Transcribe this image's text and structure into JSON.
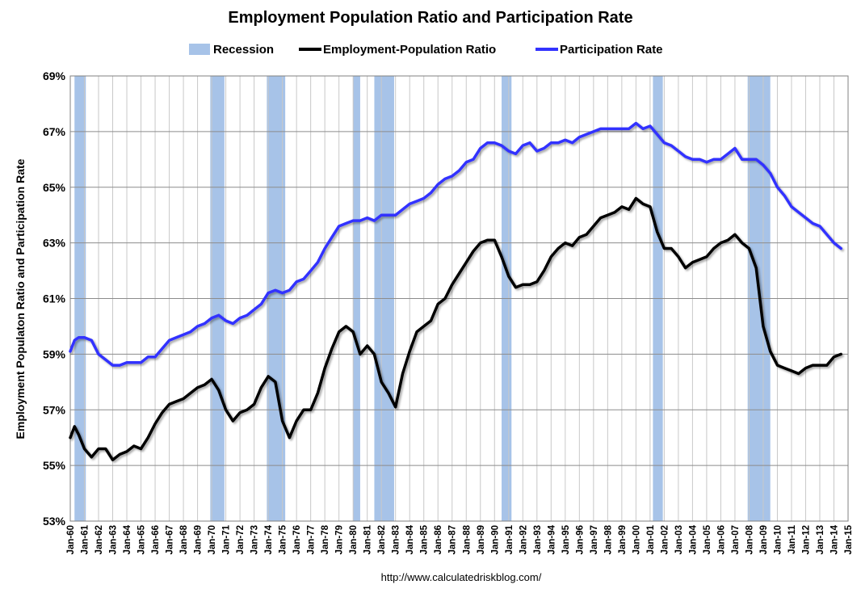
{
  "chart_data": {
    "type": "line",
    "title": "Employment Population Ratio and Participation Rate",
    "ylabel": "Employment Populaton Ratio and Participation Rate",
    "xlabel": "",
    "source": "http://www.calculatedriskblog.com/",
    "ylim": [
      53,
      69
    ],
    "xlim": [
      1960.0,
      2015.0
    ],
    "y_ticks": [
      "53%",
      "55%",
      "57%",
      "59%",
      "61%",
      "63%",
      "65%",
      "67%",
      "69%"
    ],
    "x_ticks": [
      "Jan-60",
      "Jan-61",
      "Jan-62",
      "Jan-63",
      "Jan-64",
      "Jan-65",
      "Jan-66",
      "Jan-67",
      "Jan-68",
      "Jan-69",
      "Jan-70",
      "Jan-71",
      "Jan-72",
      "Jan-73",
      "Jan-74",
      "Jan-75",
      "Jan-76",
      "Jan-77",
      "Jan-78",
      "Jan-79",
      "Jan-80",
      "Jan-81",
      "Jan-82",
      "Jan-83",
      "Jan-84",
      "Jan-85",
      "Jan-86",
      "Jan-87",
      "Jan-88",
      "Jan-89",
      "Jan-90",
      "Jan-91",
      "Jan-92",
      "Jan-93",
      "Jan-94",
      "Jan-95",
      "Jan-96",
      "Jan-97",
      "Jan-98",
      "Jan-99",
      "Jan-00",
      "Jan-01",
      "Jan-02",
      "Jan-03",
      "Jan-04",
      "Jan-05",
      "Jan-06",
      "Jan-07",
      "Jan-08",
      "Jan-09",
      "Jan-10",
      "Jan-11",
      "Jan-12",
      "Jan-13",
      "Jan-14",
      "Jan-15"
    ],
    "legend": [
      {
        "name": "Recession",
        "kind": "area",
        "color": "#a7c3e8"
      },
      {
        "name": "Employment-Population Ratio",
        "kind": "line",
        "color": "#000000"
      },
      {
        "name": "Participation Rate",
        "kind": "line",
        "color": "#3333ff"
      }
    ],
    "recessions": [
      [
        1960.3,
        1961.1
      ],
      [
        1969.9,
        1970.9
      ],
      [
        1973.9,
        1975.2
      ],
      [
        1980.0,
        1980.5
      ],
      [
        1981.5,
        1982.9
      ],
      [
        1990.5,
        1991.2
      ],
      [
        2001.2,
        2001.9
      ],
      [
        2007.9,
        2009.5
      ]
    ],
    "series": [
      {
        "name": "Participation Rate",
        "color": "#3333ff",
        "x": [
          1960.0,
          1960.3,
          1960.6,
          1961.0,
          1961.5,
          1962.0,
          1962.5,
          1963.0,
          1963.5,
          1964.0,
          1964.5,
          1965.0,
          1965.5,
          1966.0,
          1966.5,
          1967.0,
          1967.5,
          1968.0,
          1968.5,
          1969.0,
          1969.5,
          1970.0,
          1970.5,
          1971.0,
          1971.5,
          1972.0,
          1972.5,
          1973.0,
          1973.5,
          1974.0,
          1974.5,
          1975.0,
          1975.5,
          1976.0,
          1976.5,
          1977.0,
          1977.5,
          1978.0,
          1978.5,
          1979.0,
          1979.5,
          1980.0,
          1980.5,
          1981.0,
          1981.5,
          1982.0,
          1982.5,
          1983.0,
          1983.5,
          1984.0,
          1984.5,
          1985.0,
          1985.5,
          1986.0,
          1986.5,
          1987.0,
          1987.5,
          1988.0,
          1988.5,
          1989.0,
          1989.5,
          1990.0,
          1990.5,
          1991.0,
          1991.5,
          1992.0,
          1992.5,
          1993.0,
          1993.5,
          1994.0,
          1994.5,
          1995.0,
          1995.5,
          1996.0,
          1996.5,
          1997.0,
          1997.5,
          1998.0,
          1998.5,
          1999.0,
          1999.5,
          2000.0,
          2000.5,
          2001.0,
          2001.5,
          2002.0,
          2002.5,
          2003.0,
          2003.5,
          2004.0,
          2004.5,
          2005.0,
          2005.5,
          2006.0,
          2006.5,
          2007.0,
          2007.5,
          2008.0,
          2008.5,
          2009.0,
          2009.5,
          2010.0,
          2010.5,
          2011.0,
          2011.5,
          2012.0,
          2012.5,
          2013.0,
          2013.5,
          2014.0,
          2014.5
        ],
        "values": [
          59.1,
          59.5,
          59.6,
          59.6,
          59.5,
          59.0,
          58.8,
          58.6,
          58.6,
          58.7,
          58.7,
          58.7,
          58.9,
          58.9,
          59.2,
          59.5,
          59.6,
          59.7,
          59.8,
          60.0,
          60.1,
          60.3,
          60.4,
          60.2,
          60.1,
          60.3,
          60.4,
          60.6,
          60.8,
          61.2,
          61.3,
          61.2,
          61.3,
          61.6,
          61.7,
          62.0,
          62.3,
          62.8,
          63.2,
          63.6,
          63.7,
          63.8,
          63.8,
          63.9,
          63.8,
          64.0,
          64.0,
          64.0,
          64.2,
          64.4,
          64.5,
          64.6,
          64.8,
          65.1,
          65.3,
          65.4,
          65.6,
          65.9,
          66.0,
          66.4,
          66.6,
          66.6,
          66.5,
          66.3,
          66.2,
          66.5,
          66.6,
          66.3,
          66.4,
          66.6,
          66.6,
          66.7,
          66.6,
          66.8,
          66.9,
          67.0,
          67.1,
          67.1,
          67.1,
          67.1,
          67.1,
          67.3,
          67.1,
          67.2,
          66.9,
          66.6,
          66.5,
          66.3,
          66.1,
          66.0,
          66.0,
          65.9,
          66.0,
          66.0,
          66.2,
          66.4,
          66.0,
          66.0,
          66.0,
          65.8,
          65.5,
          65.0,
          64.7,
          64.3,
          64.1,
          63.9,
          63.7,
          63.6,
          63.3,
          63.0,
          62.8
        ]
      },
      {
        "name": "Employment-Population Ratio",
        "color": "#000000",
        "x": [
          1960.0,
          1960.3,
          1960.6,
          1961.0,
          1961.5,
          1962.0,
          1962.5,
          1963.0,
          1963.5,
          1964.0,
          1964.5,
          1965.0,
          1965.5,
          1966.0,
          1966.5,
          1967.0,
          1967.5,
          1968.0,
          1968.5,
          1969.0,
          1969.5,
          1970.0,
          1970.5,
          1971.0,
          1971.5,
          1972.0,
          1972.5,
          1973.0,
          1973.5,
          1974.0,
          1974.5,
          1975.0,
          1975.5,
          1976.0,
          1976.5,
          1977.0,
          1977.5,
          1978.0,
          1978.5,
          1979.0,
          1979.5,
          1980.0,
          1980.5,
          1981.0,
          1981.5,
          1982.0,
          1982.5,
          1983.0,
          1983.5,
          1984.0,
          1984.5,
          1985.0,
          1985.5,
          1986.0,
          1986.5,
          1987.0,
          1987.5,
          1988.0,
          1988.5,
          1989.0,
          1989.5,
          1990.0,
          1990.5,
          1991.0,
          1991.5,
          1992.0,
          1992.5,
          1993.0,
          1993.5,
          1994.0,
          1994.5,
          1995.0,
          1995.5,
          1996.0,
          1996.5,
          1997.0,
          1997.5,
          1998.0,
          1998.5,
          1999.0,
          1999.5,
          2000.0,
          2000.5,
          2001.0,
          2001.5,
          2002.0,
          2002.5,
          2003.0,
          2003.5,
          2004.0,
          2004.5,
          2005.0,
          2005.5,
          2006.0,
          2006.5,
          2007.0,
          2007.5,
          2008.0,
          2008.5,
          2009.0,
          2009.5,
          2010.0,
          2010.5,
          2011.0,
          2011.5,
          2012.0,
          2012.5,
          2013.0,
          2013.5,
          2014.0,
          2014.5
        ],
        "values": [
          56.0,
          56.4,
          56.1,
          55.6,
          55.3,
          55.6,
          55.6,
          55.2,
          55.4,
          55.5,
          55.7,
          55.6,
          56.0,
          56.5,
          56.9,
          57.2,
          57.3,
          57.4,
          57.6,
          57.8,
          57.9,
          58.1,
          57.7,
          57.0,
          56.6,
          56.9,
          57.0,
          57.2,
          57.8,
          58.2,
          58.0,
          56.6,
          56.0,
          56.6,
          57.0,
          57.0,
          57.6,
          58.5,
          59.2,
          59.8,
          60.0,
          59.8,
          59.0,
          59.3,
          59.0,
          58.0,
          57.6,
          57.1,
          58.3,
          59.1,
          59.8,
          60.0,
          60.2,
          60.8,
          61.0,
          61.5,
          61.9,
          62.3,
          62.7,
          63.0,
          63.1,
          63.1,
          62.5,
          61.8,
          61.4,
          61.5,
          61.5,
          61.6,
          62.0,
          62.5,
          62.8,
          63.0,
          62.9,
          63.2,
          63.3,
          63.6,
          63.9,
          64.0,
          64.1,
          64.3,
          64.2,
          64.6,
          64.4,
          64.3,
          63.4,
          62.8,
          62.8,
          62.5,
          62.1,
          62.3,
          62.4,
          62.5,
          62.8,
          63.0,
          63.1,
          63.3,
          63.0,
          62.8,
          62.1,
          60.0,
          59.1,
          58.6,
          58.5,
          58.4,
          58.3,
          58.5,
          58.6,
          58.6,
          58.6,
          58.9,
          59.0
        ]
      }
    ]
  }
}
